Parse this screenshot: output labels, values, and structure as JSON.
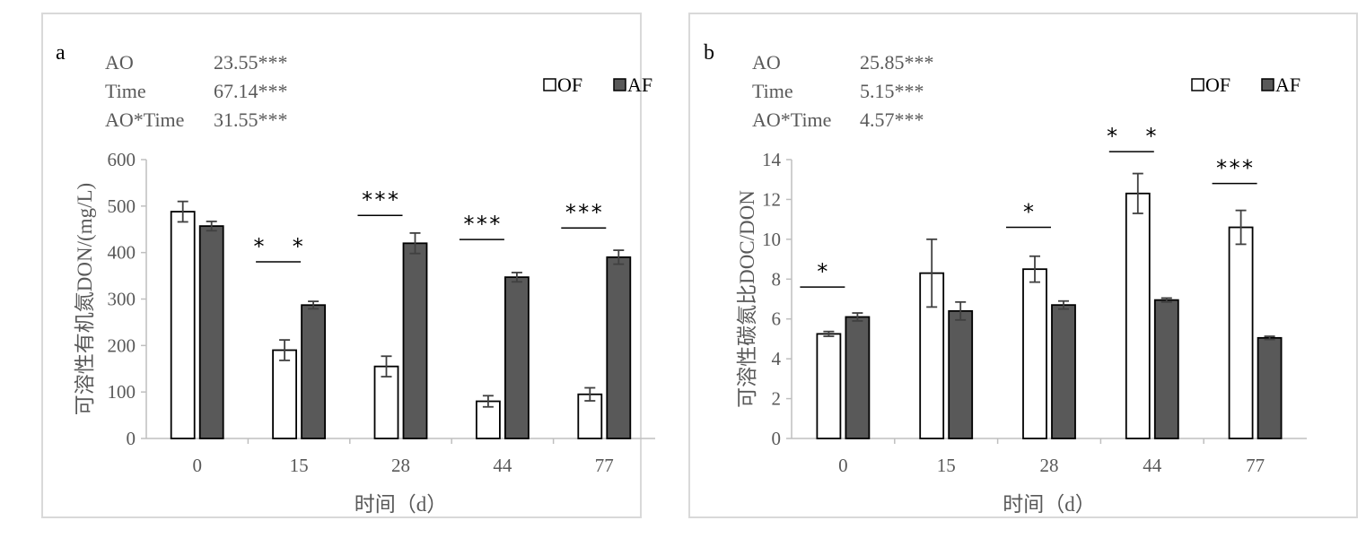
{
  "colors": {
    "OF": "#ffffff",
    "AF": "#595959",
    "axis": "#bfbfbf",
    "text": "#595959",
    "ink": "#000000"
  },
  "x_axis_label": "时间（d）",
  "chart_data": [
    {
      "type": "bar",
      "panel_label": "a",
      "ylabel": "可溶性有机氮DON/(mg/L)",
      "xlabel": "时间（d）",
      "categories": [
        "0",
        "15",
        "28",
        "44",
        "77"
      ],
      "ylim": [
        0,
        600
      ],
      "yticks": [
        0,
        100,
        200,
        300,
        400,
        500,
        600
      ],
      "grid": false,
      "legend": "top-right",
      "series": [
        {
          "name": "OF",
          "values": [
            488,
            190,
            155,
            80,
            95
          ],
          "errors": [
            22,
            22,
            22,
            12,
            14
          ]
        },
        {
          "name": "AF",
          "values": [
            457,
            287,
            420,
            347,
            390
          ],
          "errors": [
            10,
            8,
            22,
            10,
            15
          ]
        }
      ],
      "stats": [
        {
          "name": "AO",
          "value": "23.55***"
        },
        {
          "name": "Time",
          "value": "67.14***"
        },
        {
          "name": "AO*Time",
          "value": "31.55***"
        }
      ],
      "significance": [
        {
          "category": "15",
          "label": "*  *",
          "level": 380
        },
        {
          "category": "28",
          "label": "***",
          "level": 480
        },
        {
          "category": "44",
          "label": "***",
          "level": 428
        },
        {
          "category": "77",
          "label": "***",
          "level": 453
        }
      ]
    },
    {
      "type": "bar",
      "panel_label": "b",
      "ylabel": "可溶性碳氮比DOC/DON",
      "xlabel": "时间（d）",
      "categories": [
        "0",
        "15",
        "28",
        "44",
        "77"
      ],
      "ylim": [
        0,
        14
      ],
      "yticks": [
        0,
        2,
        4,
        6,
        8,
        10,
        12,
        14
      ],
      "grid": false,
      "legend": "top-right",
      "series": [
        {
          "name": "OF",
          "values": [
            5.25,
            8.3,
            8.5,
            12.3,
            10.6
          ],
          "errors": [
            0.12,
            1.7,
            0.65,
            1.0,
            0.85
          ]
        },
        {
          "name": "AF",
          "values": [
            6.1,
            6.4,
            6.7,
            6.95,
            5.05
          ],
          "errors": [
            0.2,
            0.45,
            0.2,
            0.1,
            0.08
          ]
        }
      ],
      "stats": [
        {
          "name": "AO",
          "value": "25.85***"
        },
        {
          "name": "Time",
          "value": "5.15***"
        },
        {
          "name": "AO*Time",
          "value": "4.57***"
        }
      ],
      "significance": [
        {
          "category": "0",
          "label": "*",
          "level": 7.6
        },
        {
          "category": "28",
          "label": "*",
          "level": 10.6
        },
        {
          "category": "44",
          "label": "*  *",
          "level": 14.4
        },
        {
          "category": "77",
          "label": "***",
          "level": 12.8
        }
      ]
    }
  ]
}
